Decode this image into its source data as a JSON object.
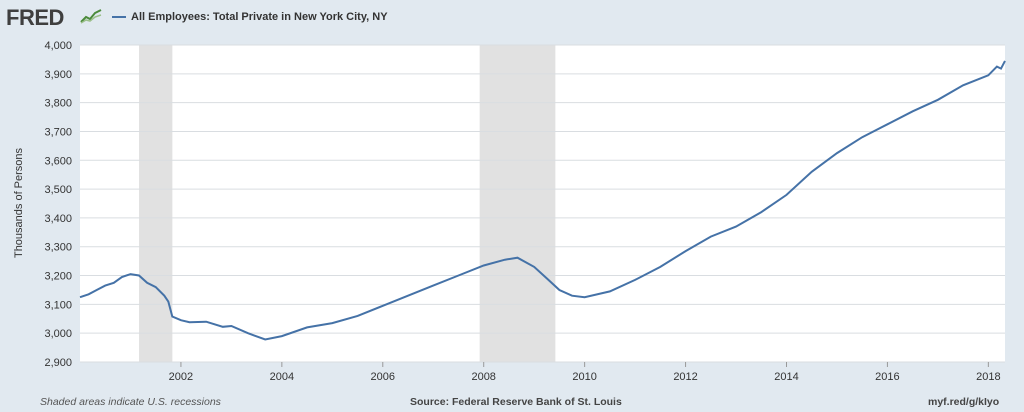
{
  "header": {
    "logo_text": "FRED",
    "logo_icon": "chart-line-icon",
    "legend_label": "All Employees: Total Private in New York City, NY",
    "series_color": "#4572a7"
  },
  "footer": {
    "left_text": "Shaded areas indicate U.S. recessions",
    "source_text": "Source: Federal Reserve Bank of St. Louis",
    "url_text": "myf.red/g/kIyo"
  },
  "chart_data": {
    "type": "line",
    "title": "",
    "xlabel": "",
    "ylabel": "Thousands of Persons",
    "xlim": [
      2000.0,
      2018.33
    ],
    "ylim": [
      2900,
      4000
    ],
    "yticks": [
      2900,
      3000,
      3100,
      3200,
      3300,
      3400,
      3500,
      3600,
      3700,
      3800,
      3900,
      4000
    ],
    "ytick_labels": [
      "2,900",
      "3,000",
      "3,100",
      "3,200",
      "3,300",
      "3,400",
      "3,500",
      "3,600",
      "3,700",
      "3,800",
      "3,900",
      "4,000"
    ],
    "xticks": [
      2002,
      2004,
      2006,
      2008,
      2010,
      2012,
      2014,
      2016,
      2018
    ],
    "xtick_labels": [
      "2002",
      "2004",
      "2006",
      "2008",
      "2010",
      "2012",
      "2014",
      "2016",
      "2018"
    ],
    "grid": true,
    "recessions": [
      [
        2001.17,
        2001.83
      ],
      [
        2007.92,
        2009.42
      ]
    ],
    "recession_color": "#e1e1e1",
    "series": [
      {
        "name": "All Employees: Total Private in New York City, NY",
        "color": "#4572a7",
        "x": [
          2000.0,
          2000.17,
          2000.33,
          2000.5,
          2000.67,
          2000.83,
          2001.0,
          2001.17,
          2001.33,
          2001.5,
          2001.67,
          2001.75,
          2001.83,
          2002.0,
          2002.17,
          2002.5,
          2002.83,
          2003.0,
          2003.33,
          2003.67,
          2004.0,
          2004.5,
          2005.0,
          2005.5,
          2006.0,
          2006.5,
          2007.0,
          2007.5,
          2008.0,
          2008.42,
          2008.67,
          2009.0,
          2009.25,
          2009.5,
          2009.75,
          2010.0,
          2010.5,
          2011.0,
          2011.5,
          2012.0,
          2012.5,
          2013.0,
          2013.5,
          2014.0,
          2014.5,
          2015.0,
          2015.5,
          2016.0,
          2016.5,
          2017.0,
          2017.5,
          2018.0,
          2018.17,
          2018.25,
          2018.33
        ],
        "values": [
          3125,
          3135,
          3150,
          3165,
          3175,
          3195,
          3205,
          3200,
          3175,
          3160,
          3130,
          3110,
          3058,
          3045,
          3038,
          3040,
          3022,
          3025,
          3000,
          2978,
          2990,
          3020,
          3035,
          3060,
          3095,
          3130,
          3165,
          3200,
          3235,
          3255,
          3262,
          3230,
          3190,
          3150,
          3130,
          3125,
          3145,
          3185,
          3230,
          3285,
          3335,
          3370,
          3420,
          3480,
          3560,
          3625,
          3680,
          3725,
          3770,
          3810,
          3860,
          3895,
          3925,
          3918,
          3945
        ]
      }
    ]
  }
}
